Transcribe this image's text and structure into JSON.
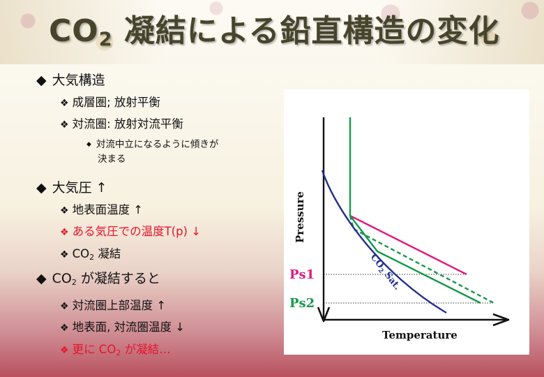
{
  "title": {
    "main": "CO",
    "sub": "2",
    "rest": " 凝結による鉛直構造の変化"
  },
  "bullets": [
    {
      "text": "大気構造"
    },
    {
      "text": "成層圏; 放射平衡"
    },
    {
      "text": "対流圏: 放射対流平衡"
    },
    {
      "text_line1": "対流中立になるように傾きが",
      "text_line2": "決まる"
    },
    {
      "text": "大気圧 ↑"
    },
    {
      "text": "地表面温度 ↑"
    },
    {
      "text": "ある気圧での温度T(p) ↓"
    },
    {
      "pre": "CO",
      "sub": "2",
      "post": " 凝結"
    },
    {
      "pre": "CO",
      "sub": "2",
      "post": " が凝結すると"
    },
    {
      "text": "対流圏上部温度 ↑"
    },
    {
      "text": "地表面, 対流圏温度 ↓"
    },
    {
      "pre": "更に CO",
      "sub": "2",
      "post": " が凝結…"
    }
  ],
  "markers": {
    "diamond": "◆",
    "four_diamond": "❖",
    "small_diamond": "◆"
  },
  "diagram": {
    "y_axis_label": "Pressure",
    "x_axis_label": "Temperature",
    "ps1": "Ps1",
    "ps2": "Ps2",
    "curve_label_pre": "CO",
    "curve_label_sub": "2",
    "curve_label_post": " Sat.",
    "colors": {
      "ps1_line": "#e0197d",
      "ps2_line": "#179848",
      "sat_curve": "#1f2f8f",
      "axis": "#111111",
      "guide": "#333333",
      "text_red": "#e8132a"
    }
  }
}
